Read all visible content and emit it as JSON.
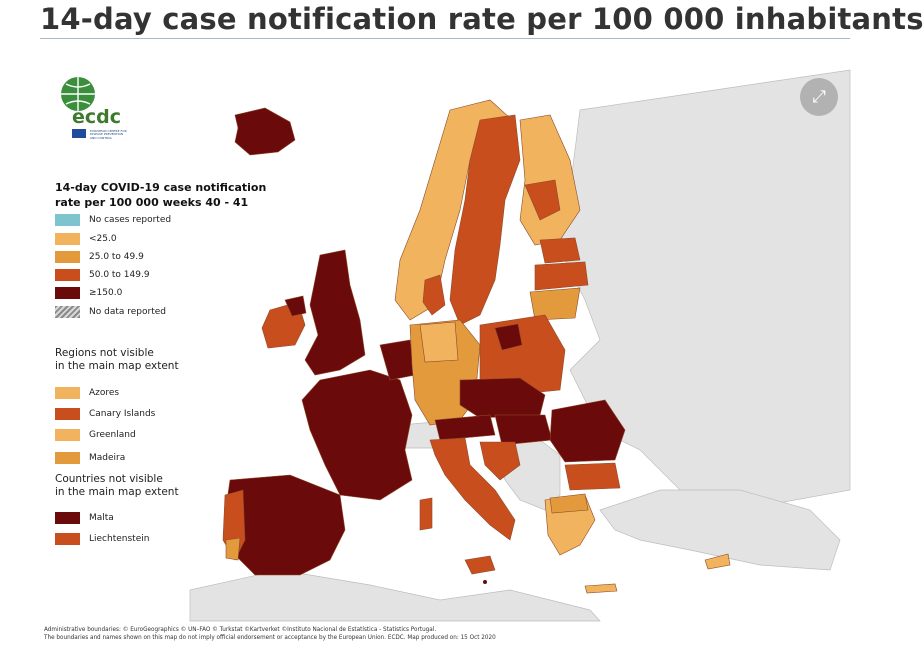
{
  "page": {
    "title": "14-day case notification rate per 100 000 inhabitants"
  },
  "logo": {
    "text": "ecdc",
    "subtitle": "EUROPEAN CENTRE FOR\nDISEASE PREVENTION\nAND CONTROL"
  },
  "legend": {
    "title_line1": "14-day COVID-19 case notification",
    "title_line2": "rate per 100 000 weeks 40 - 41",
    "items": [
      {
        "label": "No cases reported",
        "color": "#7ec4cf"
      },
      {
        "label": "<25.0",
        "color": "#f2b35e"
      },
      {
        "label": "25.0 to 49.9",
        "color": "#e39a3c"
      },
      {
        "label": "50.0 to 149.9",
        "color": "#c94e1e"
      },
      {
        "label": "≥150.0",
        "color": "#6b0a0a"
      },
      {
        "label": "No data reported",
        "color": "#8a8a8a"
      }
    ],
    "regions_heading_1": "Regions not visible",
    "regions_heading_2": "in the main map extent",
    "regions": [
      {
        "label": "Azores",
        "color": "#f2b35e"
      },
      {
        "label": "Canary Islands",
        "color": "#c94e1e"
      },
      {
        "label": "Greenland",
        "color": "#f2b35e"
      },
      {
        "label": "Madeira",
        "color": "#e39a3c"
      }
    ],
    "countries_heading_1": "Countries not visible",
    "countries_heading_2": "in the main map extent",
    "countries": [
      {
        "label": "Malta",
        "color": "#6b0a0a"
      },
      {
        "label": "Liechtenstein",
        "color": "#c94e1e"
      }
    ]
  },
  "controls": {
    "expand_icon": "⤢"
  },
  "colors": {
    "sea": "#ffffff",
    "non_eu_land": "#e3e3e3",
    "border": "#8c4a2a"
  },
  "credits": {
    "line1": "Administrative boundaries: © EuroGeographics © UN–FAO © Turkstat ©Kartverket ©Instituto Nacional de Estatística - Statistics Portugal.",
    "line2": "The boundaries and names shown on this map do not imply official endorsement or acceptance by the European Union. ECDC. Map produced on: 15 Oct 2020"
  }
}
